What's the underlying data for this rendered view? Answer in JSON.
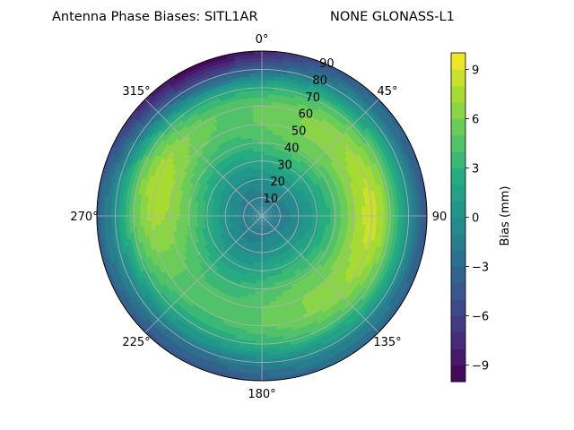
{
  "chart_data": {
    "type": "polar-contour",
    "title": "Antenna Phase Biases: SITL1AR",
    "subtitle": "NONE GLONASS-L1",
    "colorbar": {
      "label": "Bias (mm)",
      "range": [
        -10,
        10
      ],
      "ticks": [
        -9,
        -6,
        -3,
        0,
        3,
        6,
        9
      ],
      "tick_labels": [
        "−9",
        "−6",
        "−3",
        "0",
        "3",
        "6",
        "9"
      ],
      "levels": [
        -10,
        -9,
        -8,
        -7,
        -6,
        -5,
        -4,
        -3,
        -2,
        -1,
        0,
        1,
        2,
        3,
        4,
        5,
        6,
        7,
        8,
        9,
        10
      ],
      "colormap": "viridis"
    },
    "angular_ticks": [
      "0°",
      "45°",
      "90",
      "135°",
      "180°",
      "225°",
      "270°",
      "315°"
    ],
    "radial_ticks": [
      "10",
      "20",
      "30",
      "40",
      "50",
      "60",
      "70",
      "80",
      "90"
    ],
    "radial_range": [
      0,
      90
    ],
    "grid": true,
    "field": {
      "description_of_bias_vs_zenith": [
        {
          "zenith": 0,
          "bias": -2
        },
        {
          "zenith": 10,
          "bias": -1.5
        },
        {
          "zenith": 20,
          "bias": 0
        },
        {
          "zenith": 30,
          "bias": 2
        },
        {
          "zenith": 40,
          "bias": 4
        },
        {
          "zenith": 50,
          "bias": 5
        },
        {
          "zenith": 60,
          "bias": 5
        },
        {
          "zenith": 70,
          "bias": 3
        },
        {
          "zenith": 80,
          "bias": -1
        },
        {
          "zenith": 90,
          "bias": -4
        }
      ],
      "local_maxima": [
        {
          "azimuth": 90,
          "zenith": 62,
          "bias": 9
        },
        {
          "azimuth": 295,
          "zenith": 62,
          "bias": 7
        }
      ],
      "low_region": {
        "azimuth": 340,
        "zenith": 90,
        "bias": -9
      }
    }
  }
}
